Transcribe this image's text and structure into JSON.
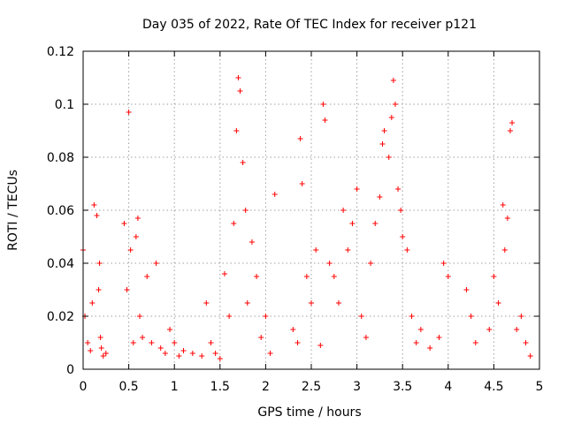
{
  "chart_data": {
    "type": "scatter",
    "title": "Day 035 of 2022, Rate Of TEC Index for receiver p121",
    "xlabel": "GPS time / hours",
    "ylabel": "ROTI / TECUs",
    "xlim": [
      0,
      5
    ],
    "ylim": [
      0,
      0.12
    ],
    "grid": true,
    "marker": "+",
    "color": "#ff0000",
    "x_ticks": [
      "0",
      "0.5",
      "1",
      "1.5",
      "2",
      "2.5",
      "3",
      "3.5",
      "4",
      "4.5",
      "5"
    ],
    "y_ticks": [
      "0",
      "0.02",
      "0.04",
      "0.06",
      "0.08",
      "0.1",
      "0.12"
    ],
    "series": [
      {
        "name": "ROTI",
        "x": [
          0.0,
          0.02,
          0.05,
          0.08,
          0.1,
          0.12,
          0.15,
          0.17,
          0.18,
          0.19,
          0.2,
          0.22,
          0.25,
          0.45,
          0.48,
          0.5,
          0.52,
          0.55,
          0.58,
          0.6,
          0.62,
          0.65,
          0.7,
          0.75,
          0.8,
          0.85,
          0.9,
          0.95,
          1.0,
          1.05,
          1.1,
          1.2,
          1.3,
          1.35,
          1.4,
          1.45,
          1.5,
          1.55,
          1.6,
          1.65,
          1.68,
          1.7,
          1.72,
          1.75,
          1.78,
          1.8,
          1.85,
          1.9,
          1.95,
          2.0,
          2.05,
          2.1,
          2.3,
          2.35,
          2.38,
          2.4,
          2.45,
          2.5,
          2.55,
          2.6,
          2.63,
          2.65,
          2.7,
          2.75,
          2.8,
          2.85,
          2.9,
          2.95,
          3.0,
          3.05,
          3.1,
          3.15,
          3.2,
          3.25,
          3.28,
          3.3,
          3.35,
          3.38,
          3.4,
          3.42,
          3.45,
          3.48,
          3.5,
          3.55,
          3.6,
          3.65,
          3.7,
          3.8,
          3.9,
          3.95,
          4.0,
          4.2,
          4.25,
          4.3,
          4.45,
          4.5,
          4.55,
          4.6,
          4.62,
          4.65,
          4.68,
          4.7,
          4.75,
          4.8,
          4.85,
          4.9
        ],
        "y": [
          0.045,
          0.02,
          0.01,
          0.007,
          0.025,
          0.062,
          0.058,
          0.03,
          0.04,
          0.012,
          0.008,
          0.005,
          0.006,
          0.055,
          0.03,
          0.097,
          0.045,
          0.01,
          0.05,
          0.057,
          0.02,
          0.012,
          0.035,
          0.01,
          0.04,
          0.008,
          0.006,
          0.015,
          0.01,
          0.005,
          0.007,
          0.006,
          0.005,
          0.025,
          0.01,
          0.006,
          0.004,
          0.036,
          0.02,
          0.055,
          0.09,
          0.11,
          0.105,
          0.078,
          0.06,
          0.025,
          0.048,
          0.035,
          0.012,
          0.02,
          0.006,
          0.066,
          0.015,
          0.01,
          0.087,
          0.07,
          0.035,
          0.025,
          0.045,
          0.009,
          0.1,
          0.094,
          0.04,
          0.035,
          0.025,
          0.06,
          0.045,
          0.055,
          0.068,
          0.02,
          0.012,
          0.04,
          0.055,
          0.065,
          0.085,
          0.09,
          0.08,
          0.095,
          0.109,
          0.1,
          0.068,
          0.06,
          0.05,
          0.045,
          0.02,
          0.01,
          0.015,
          0.008,
          0.012,
          0.04,
          0.035,
          0.03,
          0.02,
          0.01,
          0.015,
          0.035,
          0.025,
          0.062,
          0.045,
          0.057,
          0.09,
          0.093,
          0.015,
          0.02,
          0.01,
          0.005
        ]
      }
    ]
  }
}
